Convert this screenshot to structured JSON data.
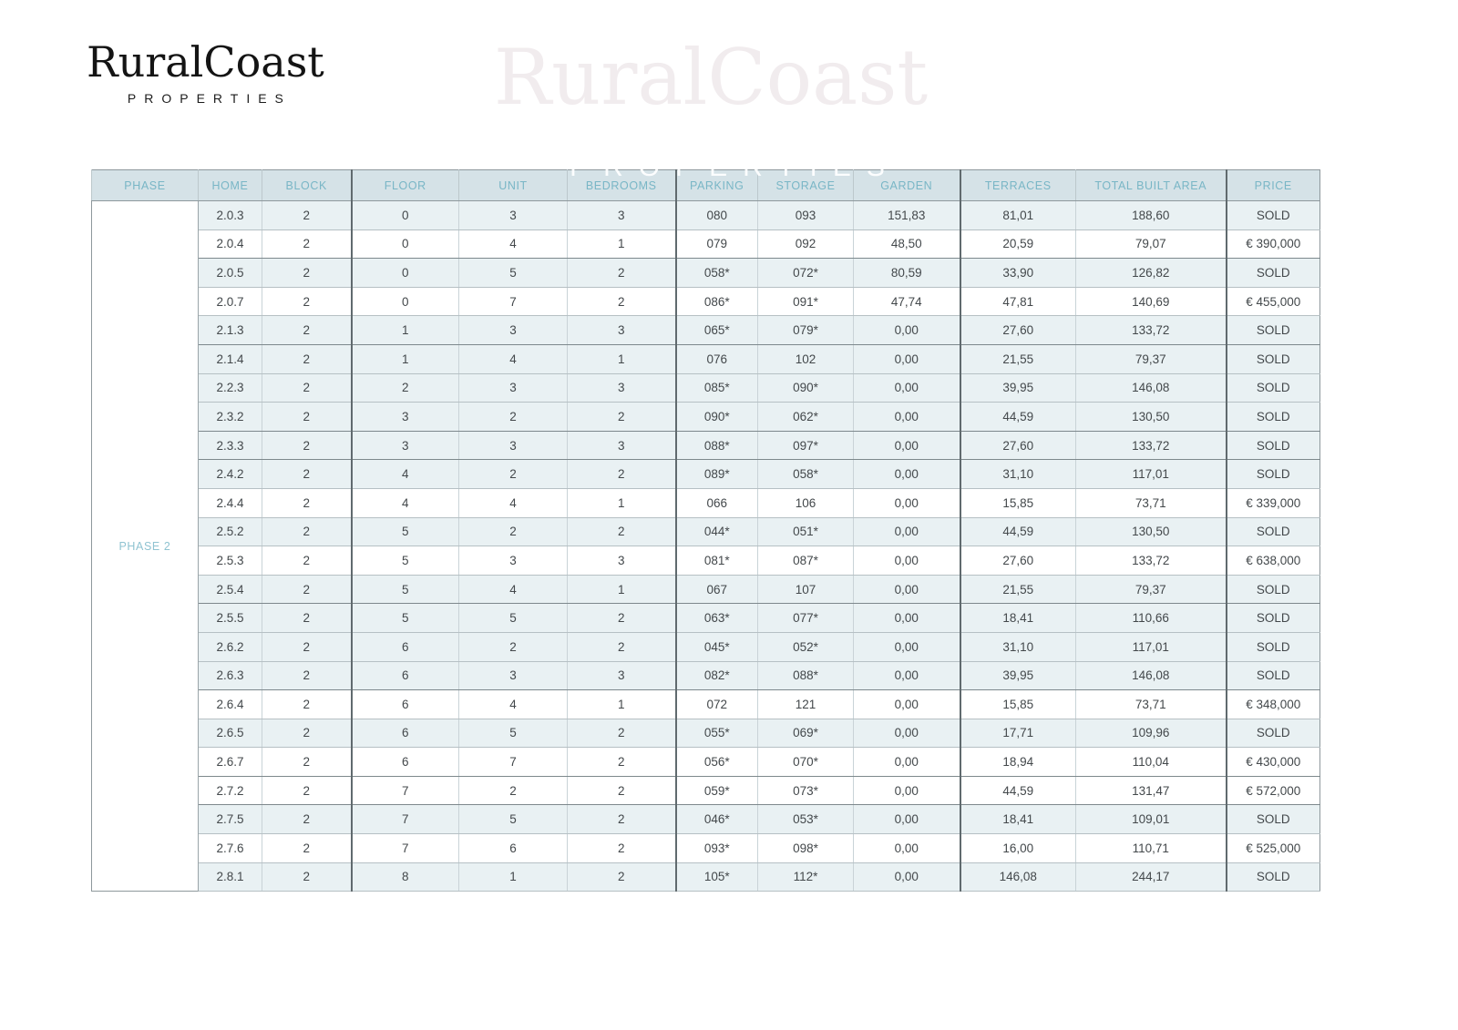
{
  "brand": {
    "name": "RuralCoast",
    "tagline": "PROPERTIES"
  },
  "watermark": {
    "name": "RuralCoast",
    "tagline": "PROPERTIES"
  },
  "colors": {
    "accent_teal": "#79b6c6",
    "phase_label_teal": "#8fc3d1",
    "header_background": "#d5e2e7",
    "sold_row_tint": "#e9f1f3",
    "body_text": "#43484b",
    "logo_text": "#141414"
  },
  "table": {
    "phase_label": "PHASE 2",
    "headers": [
      "PHASE",
      "HOME",
      "BLOCK",
      "FLOOR",
      "UNIT",
      "BEDROOMS",
      "PARKING",
      "STORAGE",
      "GARDEN",
      "TERRACES",
      "TOTAL BUILT AREA",
      "PRICE"
    ],
    "rows": [
      {
        "home": "2.0.3",
        "block": "2",
        "floor": "0",
        "unit": "3",
        "bedrooms": "3",
        "parking": "080",
        "storage": "093",
        "garden": "151,83",
        "terraces": "81,01",
        "total_built_area": "188,60",
        "price": "SOLD"
      },
      {
        "home": "2.0.4",
        "block": "2",
        "floor": "0",
        "unit": "4",
        "bedrooms": "1",
        "parking": "079",
        "storage": "092",
        "garden": "48,50",
        "terraces": "20,59",
        "total_built_area": "79,07",
        "price": "€ 390,000"
      },
      {
        "home": "2.0.5",
        "block": "2",
        "floor": "0",
        "unit": "5",
        "bedrooms": "2",
        "parking": "058*",
        "storage": "072*",
        "garden": "80,59",
        "terraces": "33,90",
        "total_built_area": "126,82",
        "price": "SOLD"
      },
      {
        "home": "2.0.7",
        "block": "2",
        "floor": "0",
        "unit": "7",
        "bedrooms": "2",
        "parking": "086*",
        "storage": "091*",
        "garden": "47,74",
        "terraces": "47,81",
        "total_built_area": "140,69",
        "price": "€ 455,000"
      },
      {
        "home": "2.1.3",
        "block": "2",
        "floor": "1",
        "unit": "3",
        "bedrooms": "3",
        "parking": "065*",
        "storage": "079*",
        "garden": "0,00",
        "terraces": "27,60",
        "total_built_area": "133,72",
        "price": "SOLD"
      },
      {
        "home": "2.1.4",
        "block": "2",
        "floor": "1",
        "unit": "4",
        "bedrooms": "1",
        "parking": "076",
        "storage": "102",
        "garden": "0,00",
        "terraces": "21,55",
        "total_built_area": "79,37",
        "price": "SOLD"
      },
      {
        "home": "2.2.3",
        "block": "2",
        "floor": "2",
        "unit": "3",
        "bedrooms": "3",
        "parking": "085*",
        "storage": "090*",
        "garden": "0,00",
        "terraces": "39,95",
        "total_built_area": "146,08",
        "price": "SOLD"
      },
      {
        "home": "2.3.2",
        "block": "2",
        "floor": "3",
        "unit": "2",
        "bedrooms": "2",
        "parking": "090*",
        "storage": "062*",
        "garden": "0,00",
        "terraces": "44,59",
        "total_built_area": "130,50",
        "price": "SOLD"
      },
      {
        "home": "2.3.3",
        "block": "2",
        "floor": "3",
        "unit": "3",
        "bedrooms": "3",
        "parking": "088*",
        "storage": "097*",
        "garden": "0,00",
        "terraces": "27,60",
        "total_built_area": "133,72",
        "price": "SOLD"
      },
      {
        "home": "2.4.2",
        "block": "2",
        "floor": "4",
        "unit": "2",
        "bedrooms": "2",
        "parking": "089*",
        "storage": "058*",
        "garden": "0,00",
        "terraces": "31,10",
        "total_built_area": "117,01",
        "price": "SOLD"
      },
      {
        "home": "2.4.4",
        "block": "2",
        "floor": "4",
        "unit": "4",
        "bedrooms": "1",
        "parking": "066",
        "storage": "106",
        "garden": "0,00",
        "terraces": "15,85",
        "total_built_area": "73,71",
        "price": "€ 339,000"
      },
      {
        "home": "2.5.2",
        "block": "2",
        "floor": "5",
        "unit": "2",
        "bedrooms": "2",
        "parking": "044*",
        "storage": "051*",
        "garden": "0,00",
        "terraces": "44,59",
        "total_built_area": "130,50",
        "price": "SOLD"
      },
      {
        "home": "2.5.3",
        "block": "2",
        "floor": "5",
        "unit": "3",
        "bedrooms": "3",
        "parking": "081*",
        "storage": "087*",
        "garden": "0,00",
        "terraces": "27,60",
        "total_built_area": "133,72",
        "price": "€ 638,000"
      },
      {
        "home": "2.5.4",
        "block": "2",
        "floor": "5",
        "unit": "4",
        "bedrooms": "1",
        "parking": "067",
        "storage": "107",
        "garden": "0,00",
        "terraces": "21,55",
        "total_built_area": "79,37",
        "price": "SOLD"
      },
      {
        "home": "2.5.5",
        "block": "2",
        "floor": "5",
        "unit": "5",
        "bedrooms": "2",
        "parking": "063*",
        "storage": "077*",
        "garden": "0,00",
        "terraces": "18,41",
        "total_built_area": "110,66",
        "price": "SOLD"
      },
      {
        "home": "2.6.2",
        "block": "2",
        "floor": "6",
        "unit": "2",
        "bedrooms": "2",
        "parking": "045*",
        "storage": "052*",
        "garden": "0,00",
        "terraces": "31,10",
        "total_built_area": "117,01",
        "price": "SOLD"
      },
      {
        "home": "2.6.3",
        "block": "2",
        "floor": "6",
        "unit": "3",
        "bedrooms": "3",
        "parking": "082*",
        "storage": "088*",
        "garden": "0,00",
        "terraces": "39,95",
        "total_built_area": "146,08",
        "price": "SOLD"
      },
      {
        "home": "2.6.4",
        "block": "2",
        "floor": "6",
        "unit": "4",
        "bedrooms": "1",
        "parking": "072",
        "storage": "121",
        "garden": "0,00",
        "terraces": "15,85",
        "total_built_area": "73,71",
        "price": "€ 348,000"
      },
      {
        "home": "2.6.5",
        "block": "2",
        "floor": "6",
        "unit": "5",
        "bedrooms": "2",
        "parking": "055*",
        "storage": "069*",
        "garden": "0,00",
        "terraces": "17,71",
        "total_built_area": "109,96",
        "price": "SOLD"
      },
      {
        "home": "2.6.7",
        "block": "2",
        "floor": "6",
        "unit": "7",
        "bedrooms": "2",
        "parking": "056*",
        "storage": "070*",
        "garden": "0,00",
        "terraces": "18,94",
        "total_built_area": "110,04",
        "price": "€ 430,000"
      },
      {
        "home": "2.7.2",
        "block": "2",
        "floor": "7",
        "unit": "2",
        "bedrooms": "2",
        "parking": "059*",
        "storage": "073*",
        "garden": "0,00",
        "terraces": "44,59",
        "total_built_area": "131,47",
        "price": "€ 572,000"
      },
      {
        "home": "2.7.5",
        "block": "2",
        "floor": "7",
        "unit": "5",
        "bedrooms": "2",
        "parking": "046*",
        "storage": "053*",
        "garden": "0,00",
        "terraces": "18,41",
        "total_built_area": "109,01",
        "price": "SOLD"
      },
      {
        "home": "2.7.6",
        "block": "2",
        "floor": "7",
        "unit": "6",
        "bedrooms": "2",
        "parking": "093*",
        "storage": "098*",
        "garden": "0,00",
        "terraces": "16,00",
        "total_built_area": "110,71",
        "price": "€ 525,000"
      },
      {
        "home": "2.8.1",
        "block": "2",
        "floor": "8",
        "unit": "1",
        "bedrooms": "2",
        "parking": "105*",
        "storage": "112*",
        "garden": "0,00",
        "terraces": "146,08",
        "total_built_area": "244,17",
        "price": "SOLD"
      }
    ],
    "sold_label": "SOLD"
  }
}
